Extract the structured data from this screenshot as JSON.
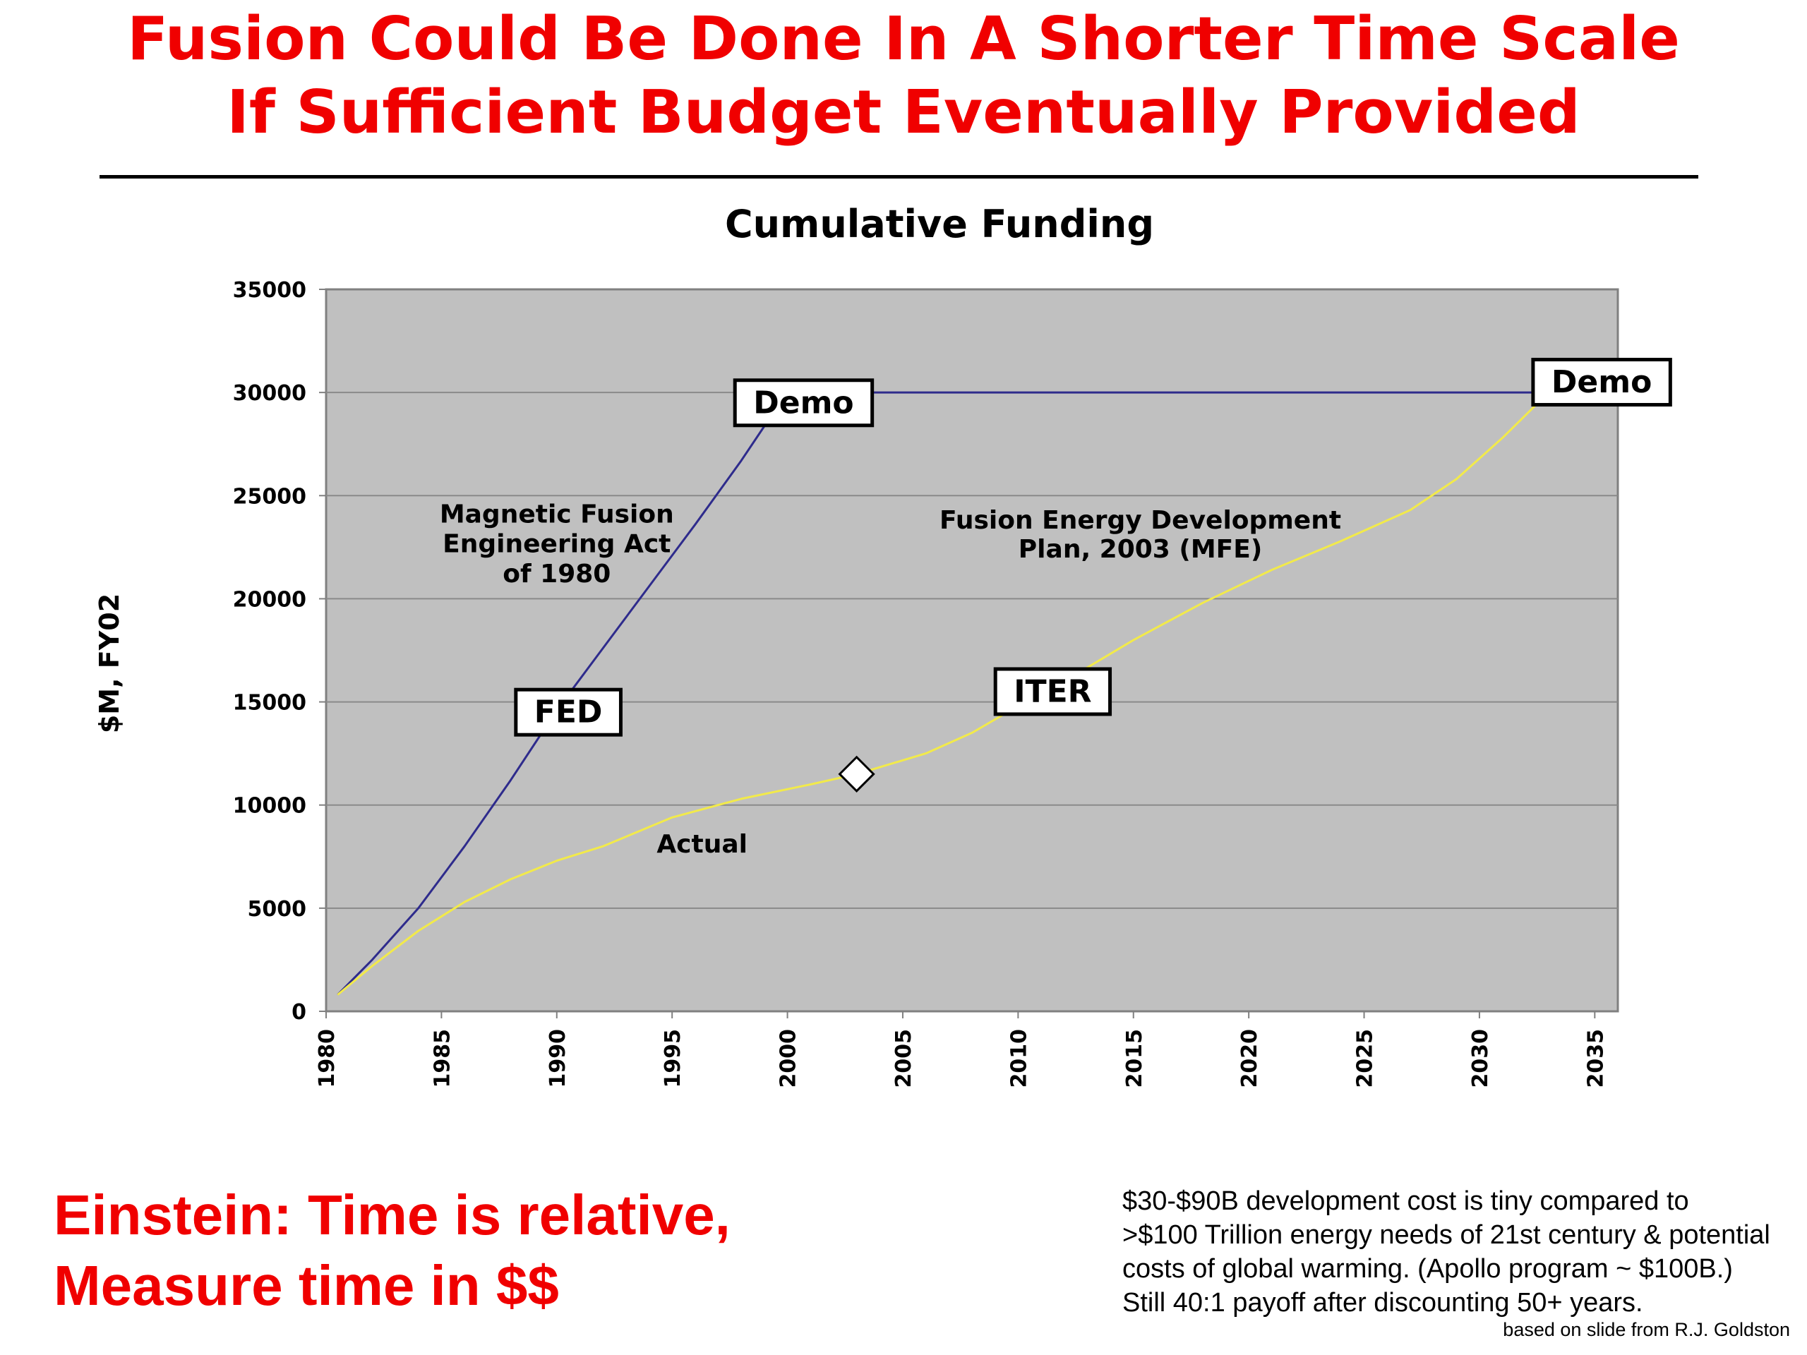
{
  "slide": {
    "title_line1": "Fusion Could Be Done In A Shorter Time Scale",
    "title_line2": "If Sufficient Budget Eventually Provided",
    "quote_line1": "Einstein: Time is relative,",
    "quote_line2": "Measure time in $$",
    "note_lines": [
      "$30-$90B development cost is tiny compared to",
      ">$100 Trillion energy needs of 21st century & potential",
      "costs of global warming.  (Apollo program ~ $100B.)",
      "Still 40:1 payoff after discounting 50+ years."
    ],
    "credit": "based on slide from R.J. Goldston"
  },
  "colors": {
    "title_red": "#f00000",
    "plot_background": "#c0c0c0",
    "mfea_line": "#2e2b8c",
    "fedp_line": "#f2ea4a",
    "gridline": "#8a8a8a"
  },
  "chart_data": {
    "type": "line",
    "title": "Cumulative Funding",
    "xlabel": "",
    "ylabel": "$M, FY02",
    "xlim": [
      1980,
      2036
    ],
    "ylim": [
      0,
      35000
    ],
    "grid": true,
    "x_ticks": [
      "1980",
      "1985",
      "1990",
      "1995",
      "2000",
      "2005",
      "2010",
      "2015",
      "2020",
      "2025",
      "2030",
      "2035"
    ],
    "y_ticks": [
      "0",
      "5000",
      "10000",
      "15000",
      "20000",
      "25000",
      "30000",
      "35000"
    ],
    "series": [
      {
        "label": "Magnetic Fusion Engineering Act of 1980",
        "color": "#2e2b8c",
        "x": [
          1980.5,
          1982,
          1984,
          1986,
          1988,
          1990,
          1992,
          1994,
          1996,
          1998,
          1999.5,
          2002,
          2006,
          2010,
          2014,
          2018,
          2022,
          2026,
          2030,
          2033
        ],
        "y": [
          800,
          2500,
          5000,
          8000,
          11200,
          14600,
          17600,
          20600,
          23600,
          26700,
          29200,
          30000,
          30000,
          30000,
          30000,
          30000,
          30000,
          30000,
          30000,
          30000
        ]
      },
      {
        "label": "Fusion Energy Development Plan, 2003 (MFE)",
        "color": "#f2ea4a",
        "x": [
          1980.5,
          1982,
          1984,
          1986,
          1988,
          1990,
          1992,
          1995,
          1998,
          2001,
          2003,
          2006,
          2008,
          2010,
          2012,
          2015,
          2018,
          2021,
          2024,
          2027,
          2029,
          2031,
          2033
        ],
        "y": [
          800,
          2200,
          3900,
          5300,
          6400,
          7300,
          8000,
          9400,
          10300,
          11000,
          11500,
          12500,
          13500,
          14800,
          16000,
          18000,
          19800,
          21400,
          22800,
          24300,
          25800,
          27800,
          30000
        ]
      }
    ],
    "annotations": [
      {
        "text": "Magnetic Fusion",
        "x": 1990,
        "y": 23700
      },
      {
        "text": "Engineering Act",
        "x": 1990,
        "y": 22250
      },
      {
        "text": "of 1980",
        "x": 1990,
        "y": 20800
      },
      {
        "text": "Fusion Energy Development",
        "x": 2015.3,
        "y": 23400
      },
      {
        "text": "Plan, 2003 (MFE)",
        "x": 2015.3,
        "y": 22000
      },
      {
        "text": "Actual",
        "x": 1996.3,
        "y": 7700
      }
    ],
    "boxed_labels": [
      {
        "text": "Demo",
        "x": 2000.7,
        "y": 29500
      },
      {
        "text": "Demo",
        "x": 2035.3,
        "y": 30500
      },
      {
        "text": "FED",
        "x": 1990.5,
        "y": 14500
      },
      {
        "text": "ITER",
        "x": 2011.5,
        "y": 15500
      }
    ],
    "marker": {
      "shape": "diamond",
      "x": 2003,
      "y": 11500
    }
  }
}
